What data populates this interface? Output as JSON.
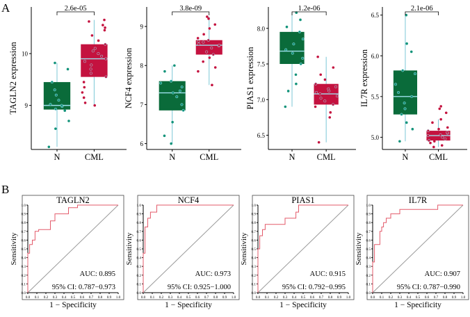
{
  "panel_labels": {
    "a": "A",
    "b": "B"
  },
  "colors": {
    "normal_box": "#0a6b3a",
    "normal_dot": "#12937a",
    "cml_box": "#c4123f",
    "cml_dot": "#c4123f",
    "median_line": "#9fe0ee",
    "whisker": "#7cc7d6",
    "roc_line": "#e35a6a",
    "diag_line": "#9a9a9a"
  },
  "chart_data": [
    {
      "type": "box",
      "title": "",
      "ylabel": "TAGLN2 expression",
      "categories": [
        "N",
        "CML"
      ],
      "p_value": "2.6e-05",
      "ylim": [
        8.15,
        10.9
      ],
      "yticks": [
        9,
        10
      ],
      "boxes": [
        {
          "name": "N",
          "min": 8.2,
          "q1": 8.92,
          "median": 9.0,
          "q3": 9.45,
          "max": 9.82,
          "points": [
            8.2,
            8.55,
            8.7,
            8.9,
            8.93,
            8.98,
            9.0,
            9.02,
            9.1,
            9.2,
            9.3,
            9.45,
            9.7,
            9.82
          ]
        },
        {
          "name": "CML",
          "min": 9.0,
          "q1": 9.55,
          "median": 9.9,
          "q3": 10.18,
          "max": 10.65,
          "points": [
            9.0,
            9.05,
            9.15,
            9.25,
            9.35,
            9.45,
            9.55,
            9.62,
            9.7,
            9.78,
            9.85,
            9.9,
            9.95,
            10.0,
            10.05,
            10.1,
            10.18,
            10.25,
            10.35,
            10.45,
            10.5,
            10.55,
            10.62,
            10.65
          ]
        }
      ]
    },
    {
      "type": "box",
      "title": "",
      "ylabel": "NCF4 expression",
      "categories": [
        "N",
        "CML"
      ],
      "p_value": "3.8e-09",
      "ylim": [
        5.85,
        9.5
      ],
      "yticks": [
        6,
        7,
        8,
        9
      ],
      "boxes": [
        {
          "name": "N",
          "min": 6.0,
          "q1": 6.85,
          "median": 7.3,
          "q3": 7.6,
          "max": 8.0,
          "points": [
            6.0,
            6.2,
            6.55,
            6.85,
            7.0,
            7.2,
            7.3,
            7.35,
            7.45,
            7.55,
            7.6,
            7.85,
            8.0
          ]
        },
        {
          "name": "CML",
          "min": 7.5,
          "q1": 8.28,
          "median": 8.52,
          "q3": 8.65,
          "max": 9.25,
          "points": [
            7.5,
            7.85,
            7.95,
            8.1,
            8.2,
            8.28,
            8.35,
            8.45,
            8.5,
            8.52,
            8.55,
            8.6,
            8.62,
            8.65,
            8.7,
            8.8,
            8.95,
            9.05,
            9.2,
            9.25
          ]
        }
      ]
    },
    {
      "type": "box",
      "title": "",
      "ylabel": "PIAS1 expression",
      "categories": [
        "N",
        "CML"
      ],
      "p_value": "1.2e-06",
      "ylim": [
        6.3,
        8.3
      ],
      "yticks": [
        6.5,
        7.0,
        7.5,
        8.0
      ],
      "boxes": [
        {
          "name": "N",
          "min": 6.9,
          "q1": 7.5,
          "median": 7.68,
          "q3": 7.95,
          "max": 8.22,
          "points": [
            6.9,
            7.12,
            7.22,
            7.35,
            7.5,
            7.58,
            7.65,
            7.7,
            7.78,
            7.85,
            7.95,
            8.02,
            8.12,
            8.22
          ]
        },
        {
          "name": "CML",
          "min": 6.4,
          "q1": 6.93,
          "median": 7.08,
          "q3": 7.22,
          "max": 7.6,
          "points": [
            6.4,
            6.75,
            6.82,
            6.9,
            6.93,
            6.98,
            7.02,
            7.05,
            7.08,
            7.1,
            7.12,
            7.15,
            7.18,
            7.22,
            7.28,
            7.35,
            7.45,
            7.6
          ]
        }
      ]
    },
    {
      "type": "box",
      "title": "",
      "ylabel": "IL7R expression",
      "categories": [
        "N",
        "CML"
      ],
      "p_value": "2.1e-06",
      "ylim": [
        4.85,
        6.6
      ],
      "yticks": [
        5.0,
        5.5,
        6.0,
        6.5
      ],
      "boxes": [
        {
          "name": "N",
          "min": 4.95,
          "q1": 5.28,
          "median": 5.5,
          "q3": 5.82,
          "max": 6.5,
          "points": [
            4.95,
            5.1,
            5.18,
            5.28,
            5.35,
            5.42,
            5.5,
            5.55,
            5.65,
            5.78,
            5.82,
            6.05,
            6.15,
            6.5
          ]
        },
        {
          "name": "CML",
          "min": 4.88,
          "q1": 4.96,
          "median": 5.02,
          "q3": 5.08,
          "max": 5.22,
          "points": [
            4.88,
            4.9,
            4.93,
            4.95,
            4.96,
            4.98,
            5.0,
            5.02,
            5.03,
            5.05,
            5.06,
            5.08,
            5.1,
            5.12,
            5.18,
            5.22,
            5.3,
            5.35,
            5.38
          ]
        }
      ]
    },
    {
      "type": "line",
      "title": "TAGLN2",
      "xlabel": "1 − Specificity",
      "ylabel": "Sensitivity",
      "xlim": [
        0,
        1
      ],
      "ylim": [
        0,
        1
      ],
      "xticks": [
        "0.0",
        "0.1",
        "0.2",
        "0.3",
        "0.4",
        "0.5",
        "0.6",
        "0.7",
        "0.8",
        "0.9",
        "1.0"
      ],
      "yticks": [
        "0.0",
        "0.1",
        "0.2",
        "0.3",
        "0.4",
        "0.5",
        "0.6",
        "0.7",
        "0.8",
        "0.9",
        "1.0"
      ],
      "auc": "AUC: 0.895",
      "ci": "95% CI: 0.787−0.973",
      "x": [
        0,
        0,
        0.02,
        0.02,
        0.05,
        0.05,
        0.08,
        0.08,
        0.12,
        0.12,
        0.25,
        0.25,
        0.3,
        0.3,
        0.45,
        0.45,
        0.55,
        0.55,
        1.0
      ],
      "y": [
        0,
        0.45,
        0.45,
        0.55,
        0.55,
        0.6,
        0.6,
        0.7,
        0.7,
        0.72,
        0.72,
        0.82,
        0.82,
        0.9,
        0.9,
        0.97,
        0.97,
        1.0,
        1.0
      ]
    },
    {
      "type": "line",
      "title": "NCF4",
      "xlabel": "1 − Specificity",
      "ylabel": "Sensitivity",
      "xlim": [
        0,
        1
      ],
      "ylim": [
        0,
        1
      ],
      "xticks": [
        "0.0",
        "0.1",
        "0.2",
        "0.3",
        "0.4",
        "0.5",
        "0.6",
        "0.7",
        "0.8",
        "0.9",
        "1.0"
      ],
      "yticks": [
        "0.0",
        "0.1",
        "0.2",
        "0.3",
        "0.4",
        "0.5",
        "0.6",
        "0.7",
        "0.8",
        "0.9",
        "1.0"
      ],
      "auc": "AUC: 0.973",
      "ci": "95% CI: 0.925−1.000",
      "x": [
        0,
        0,
        0.02,
        0.02,
        0.05,
        0.05,
        0.08,
        0.08,
        0.15,
        0.15,
        1.0
      ],
      "y": [
        0,
        0.45,
        0.45,
        0.75,
        0.75,
        0.85,
        0.85,
        0.92,
        0.92,
        1.0,
        1.0
      ]
    },
    {
      "type": "line",
      "title": "PIAS1",
      "xlabel": "1 − Specificity",
      "ylabel": "Sensitivity",
      "xlim": [
        0,
        1
      ],
      "ylim": [
        0,
        1
      ],
      "xticks": [
        "0.0",
        "0.1",
        "0.2",
        "0.3",
        "0.4",
        "0.5",
        "0.6",
        "0.7",
        "0.8",
        "0.9",
        "1.0"
      ],
      "yticks": [
        "0.0",
        "0.1",
        "0.2",
        "0.3",
        "0.4",
        "0.5",
        "0.6",
        "0.7",
        "0.8",
        "0.9",
        "1.0"
      ],
      "auc": "AUC: 0.915",
      "ci": "95% CI: 0.792−0.995",
      "x": [
        0,
        0,
        0.02,
        0.02,
        0.05,
        0.05,
        0.08,
        0.08,
        0.3,
        0.3,
        0.42,
        0.42,
        0.45,
        0.45,
        1.0
      ],
      "y": [
        0,
        0.5,
        0.5,
        0.65,
        0.65,
        0.72,
        0.72,
        0.78,
        0.78,
        0.85,
        0.85,
        0.92,
        0.92,
        1.0,
        1.0
      ]
    },
    {
      "type": "line",
      "title": "IL7R",
      "xlabel": "1 − Specificity",
      "ylabel": "Sensitivity",
      "xlim": [
        0,
        1
      ],
      "ylim": [
        0,
        1
      ],
      "xticks": [
        "0.0",
        "0.1",
        "0.2",
        "0.3",
        "0.4",
        "0.5",
        "0.6",
        "0.7",
        "0.8",
        "0.9",
        "1.0"
      ],
      "yticks": [
        "0.0",
        "0.1",
        "0.2",
        "0.3",
        "0.4",
        "0.5",
        "0.6",
        "0.7",
        "0.8",
        "0.9",
        "1.0"
      ],
      "auc": "AUC: 0.907",
      "ci": "95% CI: 0.787−0.990",
      "x": [
        0,
        0,
        0.02,
        0.02,
        0.08,
        0.08,
        0.1,
        0.1,
        0.12,
        0.12,
        0.15,
        0.15,
        0.2,
        0.2,
        0.3,
        0.3,
        0.72,
        0.72,
        1.0
      ],
      "y": [
        0,
        0.35,
        0.35,
        0.55,
        0.55,
        0.7,
        0.7,
        0.75,
        0.75,
        0.8,
        0.8,
        0.85,
        0.85,
        0.9,
        0.9,
        0.95,
        0.95,
        1.0,
        1.0
      ]
    }
  ]
}
